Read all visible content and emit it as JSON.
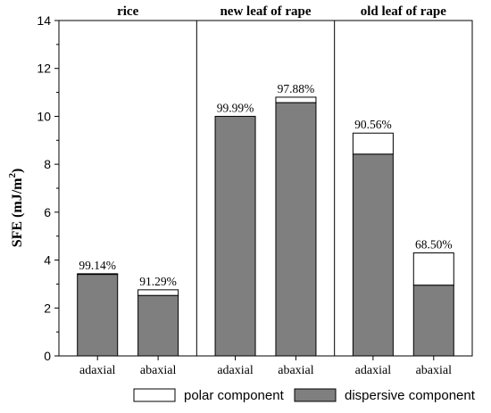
{
  "chart_data": {
    "type": "bar",
    "stacked": true,
    "panels": [
      {
        "title": "rice",
        "categories": [
          "adaxial",
          "abaxial"
        ]
      },
      {
        "title": "new leaf of rape",
        "categories": [
          "adaxial",
          "abaxial"
        ]
      },
      {
        "title": "old leaf of rape",
        "categories": [
          "adaxial",
          "abaxial"
        ]
      }
    ],
    "categories": [
      "adaxial",
      "abaxial",
      "adaxial",
      "abaxial",
      "adaxial",
      "abaxial"
    ],
    "series": [
      {
        "name": "dispersive component",
        "values": [
          3.4,
          2.52,
          10.0,
          10.57,
          8.42,
          2.95
        ],
        "color": "#7f7f7f"
      },
      {
        "name": "polar component",
        "values": [
          0.03,
          0.24,
          0.0,
          0.23,
          0.88,
          1.35
        ],
        "color": "#ffffff"
      }
    ],
    "annotations": [
      "99.14%",
      "91.29%",
      "99.99%",
      "97.88%",
      "90.56%",
      "68.50%"
    ],
    "ylabel": "SFE (mJ/m2)",
    "ylim": [
      0,
      14
    ],
    "yticks": [
      "0",
      "2",
      "4",
      "6",
      "8",
      "10",
      "12",
      "14"
    ],
    "grid": false,
    "legend_position": "bottom"
  }
}
